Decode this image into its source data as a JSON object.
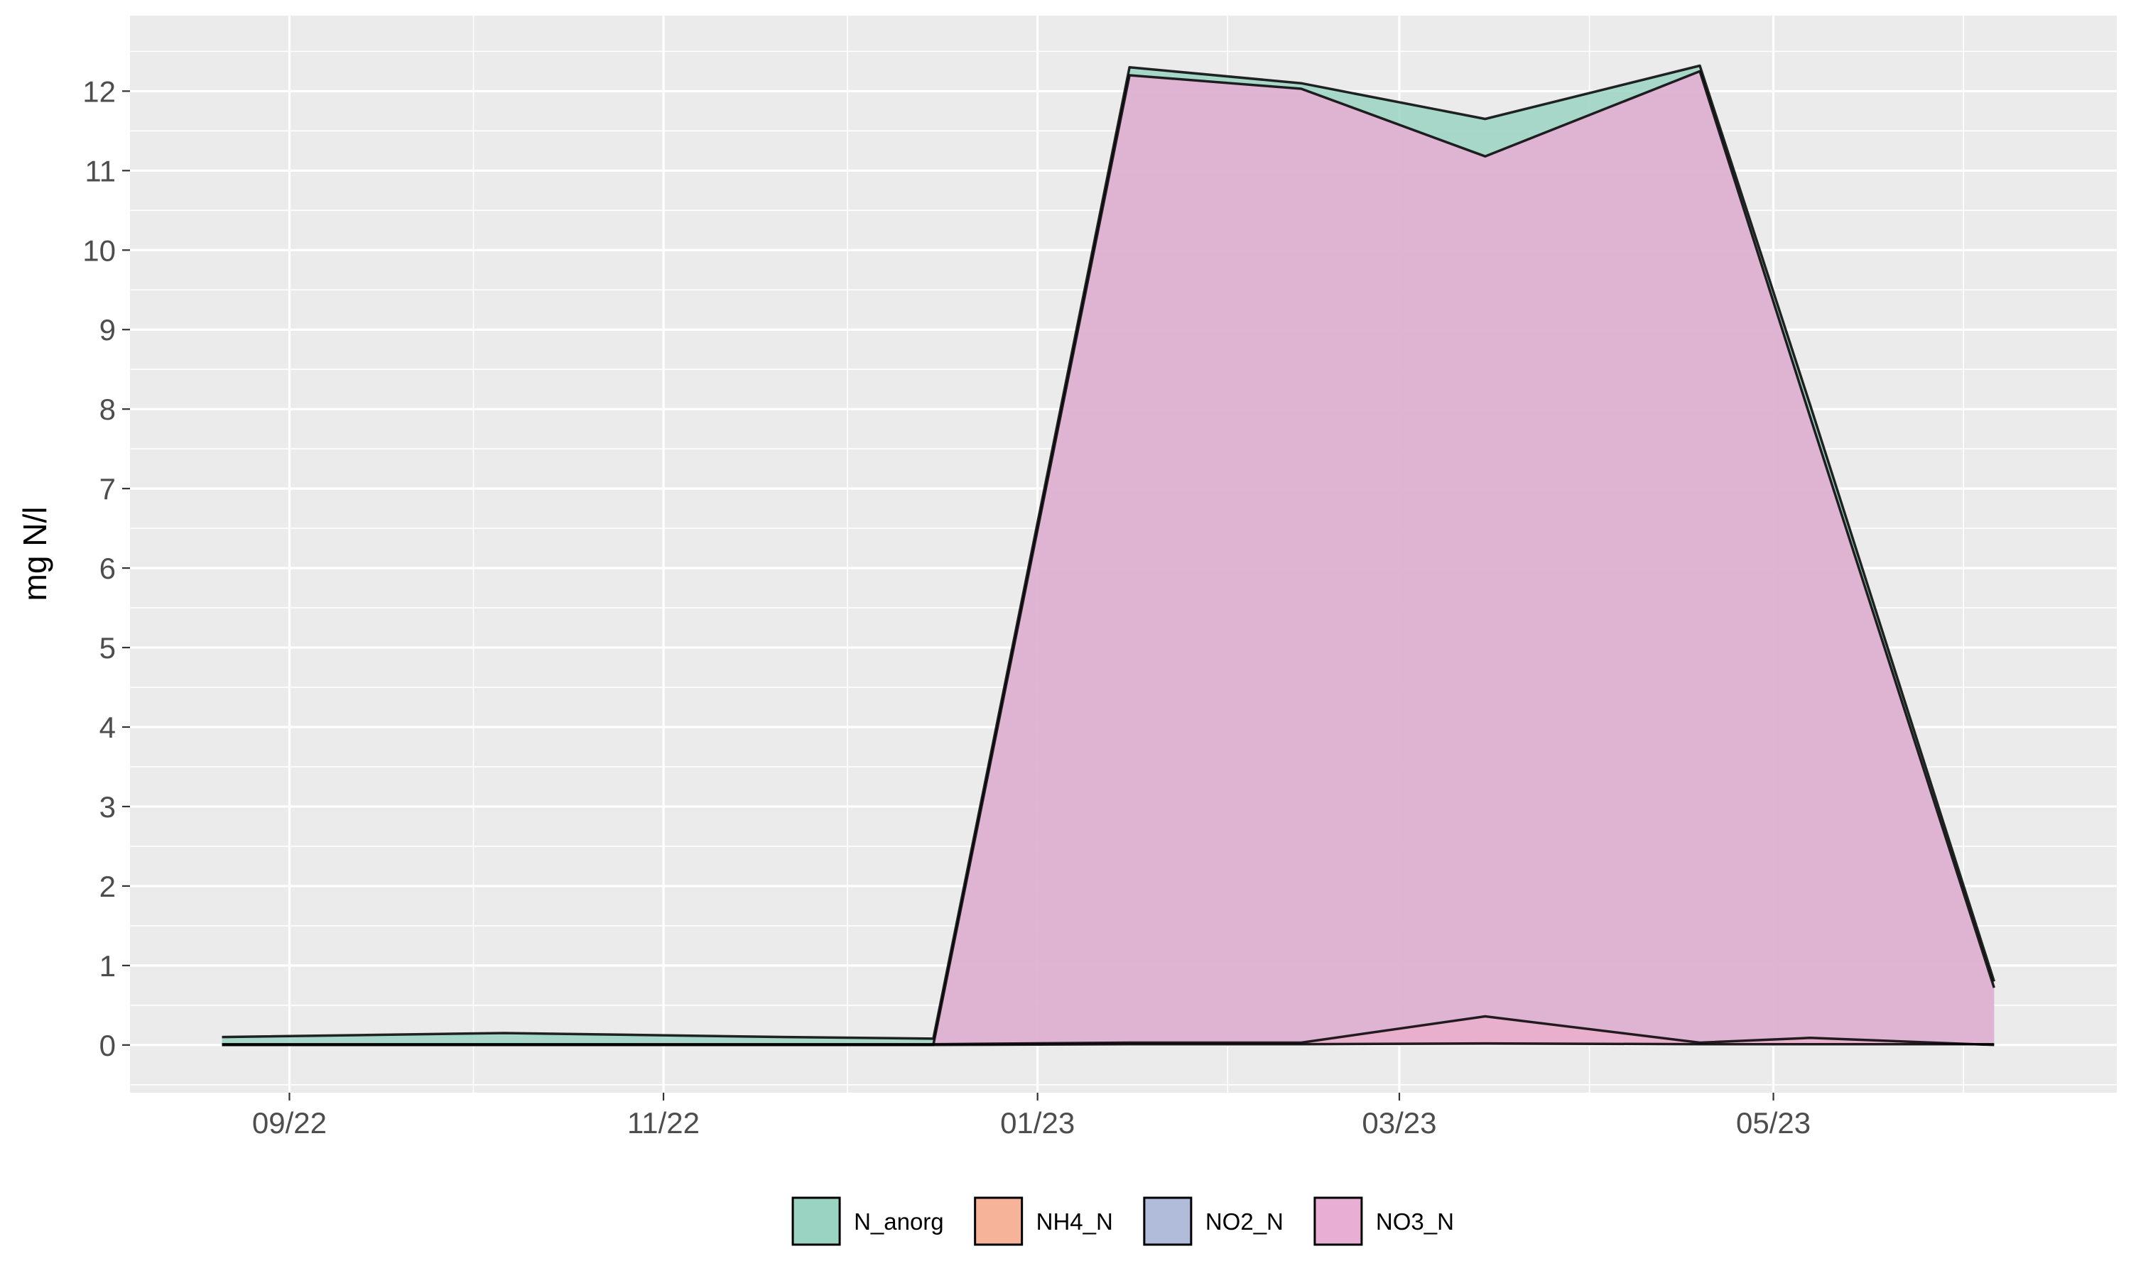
{
  "chart_data": {
    "type": "area",
    "xlabel": "",
    "ylabel": "mg N/l",
    "ylim": [
      -0.6,
      12.95
    ],
    "y_ticks": [
      0,
      1,
      2,
      3,
      4,
      5,
      6,
      7,
      8,
      9,
      10,
      11,
      12
    ],
    "xlim": [
      "2022-08-06",
      "2023-06-26"
    ],
    "x_ticks": [
      {
        "date": "2022-09-01",
        "label": "09/22"
      },
      {
        "date": "2022-11-01",
        "label": "11/22"
      },
      {
        "date": "2023-01-01",
        "label": "01/23"
      },
      {
        "date": "2023-03-01",
        "label": "03/23"
      },
      {
        "date": "2023-05-01",
        "label": "05/23"
      }
    ],
    "x_minor": [
      "2022-10-01",
      "2022-12-01",
      "2023-02-01",
      "2023-04-01",
      "2023-06-01"
    ],
    "grid": true,
    "legend": "bottom",
    "x": [
      "2022-08-21",
      "2022-10-06",
      "2022-11-21",
      "2022-12-15",
      "2023-01-16",
      "2023-02-13",
      "2023-03-15",
      "2023-04-19",
      "2023-05-07",
      "2023-06-06"
    ],
    "series": [
      {
        "name": "N_anorg",
        "color": "#9bd3c3",
        "values": [
          0.1,
          0.15,
          0.1,
          0.08,
          12.3,
          12.1,
          11.65,
          12.32,
          8.05,
          0.8
        ]
      },
      {
        "name": "NH4_N",
        "color": "#f6b39a",
        "values": [
          0.01,
          0.01,
          0.01,
          0.01,
          0.03,
          0.03,
          0.36,
          0.03,
          0.09,
          0.0
        ]
      },
      {
        "name": "NO2_N",
        "color": "#b1bcdb",
        "values": [
          0.0,
          0.0,
          0.0,
          0.0,
          0.01,
          0.01,
          0.02,
          0.01,
          0.01,
          0.01
        ]
      },
      {
        "name": "NO3_N",
        "color": "#e8aed4",
        "values": [
          0.0,
          0.0,
          0.0,
          0.0,
          12.2,
          12.03,
          11.18,
          12.25,
          7.9,
          0.72
        ]
      }
    ]
  }
}
